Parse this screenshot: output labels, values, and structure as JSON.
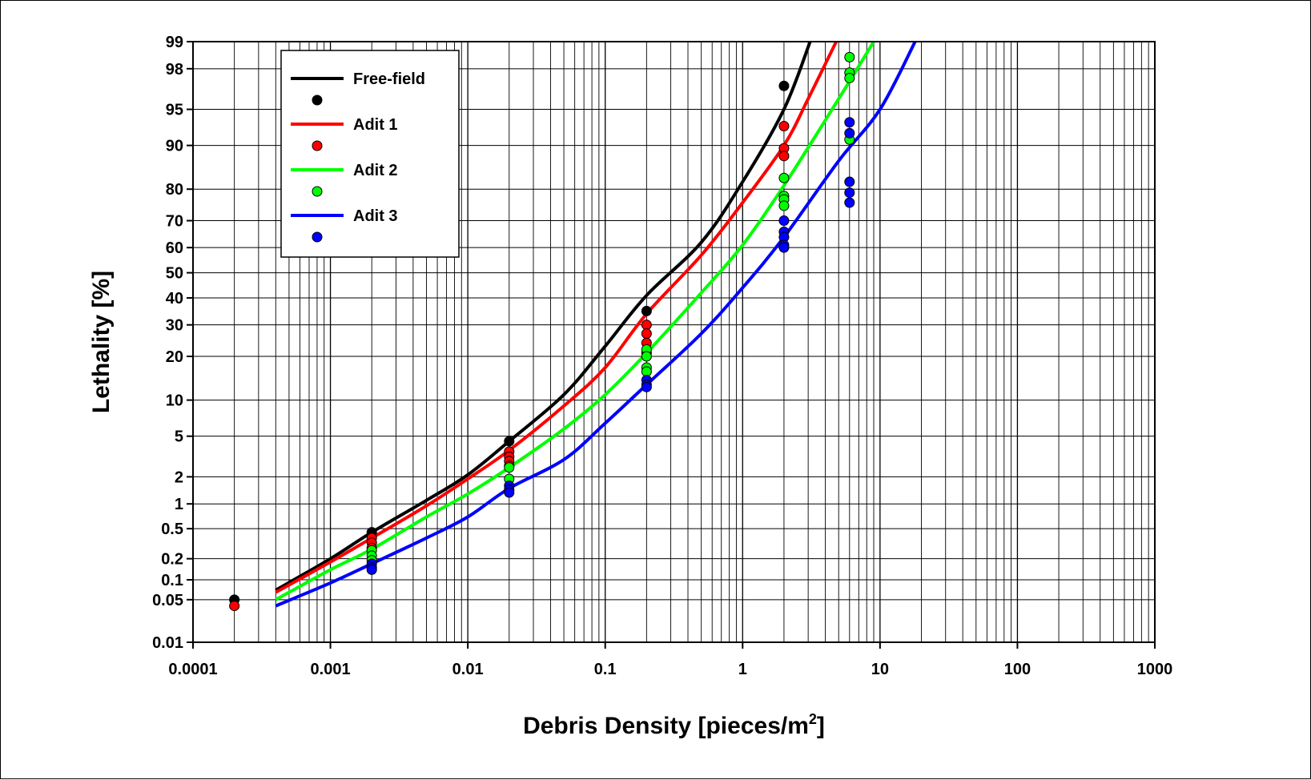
{
  "chart_data": {
    "type": "scatter",
    "xlabel": "Debris Density [pieces/m",
    "xlabel_superscript": "2",
    "xlabel_suffix": "]",
    "ylabel": "Lethality [%]",
    "x_scale": "log",
    "y_scale": "probit",
    "xlim": [
      0.0001,
      1000
    ],
    "ylim": [
      0.01,
      99
    ],
    "grid": true,
    "legend_position": "top-left",
    "x_ticks": [
      {
        "value": 0.0001,
        "label": "0.0001"
      },
      {
        "value": 0.001,
        "label": "0.001"
      },
      {
        "value": 0.01,
        "label": "0.01"
      },
      {
        "value": 0.1,
        "label": "0.1"
      },
      {
        "value": 1,
        "label": "1"
      },
      {
        "value": 10,
        "label": "10"
      },
      {
        "value": 100,
        "label": "100"
      },
      {
        "value": 1000,
        "label": "1000"
      }
    ],
    "y_ticks": [
      {
        "value": 0.01,
        "label": "0.01"
      },
      {
        "value": 0.05,
        "label": "0.05"
      },
      {
        "value": 0.1,
        "label": "0.1"
      },
      {
        "value": 0.2,
        "label": "0.2"
      },
      {
        "value": 0.5,
        "label": "0.5"
      },
      {
        "value": 1,
        "label": "1"
      },
      {
        "value": 2,
        "label": "2"
      },
      {
        "value": 5,
        "label": "5"
      },
      {
        "value": 10,
        "label": "10"
      },
      {
        "value": 20,
        "label": "20"
      },
      {
        "value": 30,
        "label": "30"
      },
      {
        "value": 40,
        "label": "40"
      },
      {
        "value": 50,
        "label": "50"
      },
      {
        "value": 60,
        "label": "60"
      },
      {
        "value": 70,
        "label": "70"
      },
      {
        "value": 80,
        "label": "80"
      },
      {
        "value": 90,
        "label": "90"
      },
      {
        "value": 95,
        "label": "95"
      },
      {
        "value": 98,
        "label": "98"
      },
      {
        "value": 99,
        "label": "99"
      }
    ],
    "series": [
      {
        "name": "Free-field",
        "color": "#000000",
        "curve": [
          [
            0.0004,
            0.07
          ],
          [
            0.001,
            0.2
          ],
          [
            0.002,
            0.45
          ],
          [
            0.005,
            1.1
          ],
          [
            0.01,
            2.1
          ],
          [
            0.02,
            4.5
          ],
          [
            0.05,
            11
          ],
          [
            0.1,
            23
          ],
          [
            0.2,
            41
          ],
          [
            0.5,
            62
          ],
          [
            1,
            82
          ],
          [
            2,
            95
          ],
          [
            3.1,
            99
          ]
        ],
        "points": [
          [
            0.0002,
            0.05
          ],
          [
            0.002,
            0.45
          ],
          [
            0.02,
            4.5
          ],
          [
            0.2,
            35
          ],
          [
            2,
            97
          ]
        ]
      },
      {
        "name": "Adit 1",
        "color": "#ff0000",
        "curve": [
          [
            0.0004,
            0.065
          ],
          [
            0.001,
            0.18
          ],
          [
            0.002,
            0.38
          ],
          [
            0.005,
            0.95
          ],
          [
            0.01,
            1.9
          ],
          [
            0.02,
            3.7
          ],
          [
            0.05,
            9
          ],
          [
            0.1,
            17
          ],
          [
            0.2,
            34
          ],
          [
            0.5,
            57
          ],
          [
            1,
            76
          ],
          [
            2,
            90
          ],
          [
            3,
            96
          ],
          [
            4.8,
            99
          ]
        ],
        "points": [
          [
            0.0002,
            0.04
          ],
          [
            0.002,
            0.38
          ],
          [
            0.002,
            0.33
          ],
          [
            0.002,
            0.28
          ],
          [
            0.02,
            3.6
          ],
          [
            0.02,
            3.2
          ],
          [
            0.02,
            2.9
          ],
          [
            0.02,
            2.6
          ],
          [
            0.2,
            30
          ],
          [
            0.2,
            27
          ],
          [
            0.2,
            24
          ],
          [
            0.2,
            21
          ],
          [
            2,
            93
          ],
          [
            2,
            89.5
          ],
          [
            2,
            88
          ]
        ]
      },
      {
        "name": "Adit 2",
        "color": "#00ff00",
        "curve": [
          [
            0.0004,
            0.05
          ],
          [
            0.001,
            0.14
          ],
          [
            0.002,
            0.27
          ],
          [
            0.005,
            0.7
          ],
          [
            0.01,
            1.3
          ],
          [
            0.02,
            2.5
          ],
          [
            0.05,
            5.8
          ],
          [
            0.1,
            11
          ],
          [
            0.2,
            21
          ],
          [
            0.5,
            42
          ],
          [
            1,
            61
          ],
          [
            2,
            81
          ],
          [
            5,
            96
          ],
          [
            9,
            99
          ]
        ],
        "points": [
          [
            0.002,
            0.26
          ],
          [
            0.002,
            0.22
          ],
          [
            0.002,
            0.19
          ],
          [
            0.02,
            2.5
          ],
          [
            0.02,
            1.9
          ],
          [
            0.2,
            22
          ],
          [
            0.2,
            20
          ],
          [
            0.2,
            17
          ],
          [
            0.2,
            16
          ],
          [
            2,
            83
          ],
          [
            2,
            78
          ],
          [
            2,
            77
          ],
          [
            2,
            75
          ],
          [
            6,
            98.5
          ],
          [
            6,
            97.8
          ],
          [
            6,
            97.5
          ],
          [
            6,
            91
          ]
        ]
      },
      {
        "name": "Adit 3",
        "color": "#0000ff",
        "curve": [
          [
            0.0004,
            0.04
          ],
          [
            0.001,
            0.09
          ],
          [
            0.002,
            0.17
          ],
          [
            0.005,
            0.38
          ],
          [
            0.01,
            0.7
          ],
          [
            0.02,
            1.5
          ],
          [
            0.05,
            3
          ],
          [
            0.1,
            6.5
          ],
          [
            0.2,
            13
          ],
          [
            0.5,
            27
          ],
          [
            1,
            44
          ],
          [
            2,
            64
          ],
          [
            5,
            87
          ],
          [
            10,
            95
          ],
          [
            18,
            99
          ]
        ],
        "points": [
          [
            0.002,
            0.17
          ],
          [
            0.002,
            0.15
          ],
          [
            0.002,
            0.14
          ],
          [
            0.02,
            1.6
          ],
          [
            0.02,
            1.45
          ],
          [
            0.02,
            1.35
          ],
          [
            0.2,
            14
          ],
          [
            0.2,
            13
          ],
          [
            0.2,
            12.5
          ],
          [
            2,
            70
          ],
          [
            2,
            66
          ],
          [
            2,
            64
          ],
          [
            2,
            61
          ],
          [
            2,
            60
          ],
          [
            6,
            93.5
          ],
          [
            6,
            92
          ],
          [
            6,
            82
          ],
          [
            6,
            79
          ],
          [
            6,
            76
          ]
        ]
      }
    ]
  }
}
